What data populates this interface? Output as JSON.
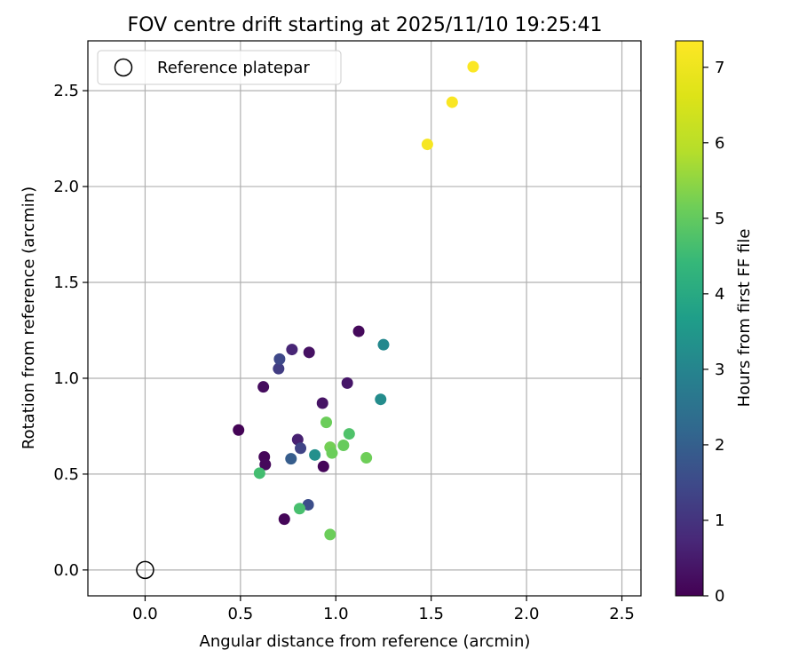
{
  "chart_data": {
    "type": "scatter",
    "title": "FOV centre drift starting at 2025/11/10 19:25:41",
    "xlabel": "Angular distance from reference (arcmin)",
    "ylabel": "Rotation from reference (arcmin)",
    "xlim": [
      -0.3,
      2.6
    ],
    "ylim": [
      -0.135,
      2.76
    ],
    "xticks": [
      0.0,
      0.5,
      1.0,
      1.5,
      2.0,
      2.5
    ],
    "xtick_labels": [
      "0.0",
      "0.5",
      "1.0",
      "1.5",
      "2.0",
      "2.5"
    ],
    "yticks": [
      0.0,
      0.5,
      1.0,
      1.5,
      2.0,
      2.5
    ],
    "ytick_labels": [
      "0.0",
      "0.5",
      "1.0",
      "1.5",
      "2.0",
      "2.5"
    ],
    "grid": true,
    "legend": {
      "placement": "top-left",
      "label": "Reference platepar"
    },
    "reference_point": {
      "x": 0.0,
      "y": 0.0
    },
    "colorbar": {
      "label": "Hours from first FF file",
      "range": [
        0,
        7.35
      ],
      "ticks": [
        0,
        1,
        2,
        3,
        4,
        5,
        6,
        7
      ],
      "tick_labels": [
        "0",
        "1",
        "2",
        "3",
        "4",
        "5",
        "6",
        "7"
      ],
      "colormap": "viridis"
    },
    "points": [
      {
        "x": 0.49,
        "y": 0.73,
        "c": 0.05
      },
      {
        "x": 0.62,
        "y": 0.955,
        "c": 0.2
      },
      {
        "x": 0.625,
        "y": 0.59,
        "c": 0.1
      },
      {
        "x": 0.63,
        "y": 0.55,
        "c": 0.15
      },
      {
        "x": 0.73,
        "y": 0.265,
        "c": 0.1
      },
      {
        "x": 0.86,
        "y": 1.135,
        "c": 0.3
      },
      {
        "x": 0.93,
        "y": 0.87,
        "c": 0.35
      },
      {
        "x": 0.935,
        "y": 0.54,
        "c": 0.1
      },
      {
        "x": 1.06,
        "y": 0.975,
        "c": 0.4
      },
      {
        "x": 1.12,
        "y": 1.245,
        "c": 0.15
      },
      {
        "x": 0.77,
        "y": 1.15,
        "c": 0.7
      },
      {
        "x": 0.8,
        "y": 0.68,
        "c": 0.6
      },
      {
        "x": 0.7,
        "y": 1.05,
        "c": 1.2
      },
      {
        "x": 0.705,
        "y": 1.1,
        "c": 1.45
      },
      {
        "x": 0.815,
        "y": 0.635,
        "c": 1.35
      },
      {
        "x": 0.765,
        "y": 0.58,
        "c": 1.95
      },
      {
        "x": 0.855,
        "y": 0.34,
        "c": 1.6
      },
      {
        "x": 0.89,
        "y": 0.6,
        "c": 3.3
      },
      {
        "x": 1.235,
        "y": 0.89,
        "c": 3.2
      },
      {
        "x": 1.25,
        "y": 1.175,
        "c": 3.1
      },
      {
        "x": 0.6,
        "y": 0.505,
        "c": 4.6
      },
      {
        "x": 0.81,
        "y": 0.32,
        "c": 4.65
      },
      {
        "x": 0.95,
        "y": 0.77,
        "c": 5.1
      },
      {
        "x": 0.97,
        "y": 0.64,
        "c": 5.2
      },
      {
        "x": 0.98,
        "y": 0.61,
        "c": 5.1
      },
      {
        "x": 1.04,
        "y": 0.65,
        "c": 5.05
      },
      {
        "x": 1.07,
        "y": 0.71,
        "c": 4.75
      },
      {
        "x": 1.16,
        "y": 0.585,
        "c": 5.15
      },
      {
        "x": 0.97,
        "y": 0.185,
        "c": 5.1
      },
      {
        "x": 1.48,
        "y": 2.22,
        "c": 7.2
      },
      {
        "x": 1.61,
        "y": 2.44,
        "c": 7.25
      },
      {
        "x": 1.72,
        "y": 2.625,
        "c": 7.3
      }
    ]
  }
}
